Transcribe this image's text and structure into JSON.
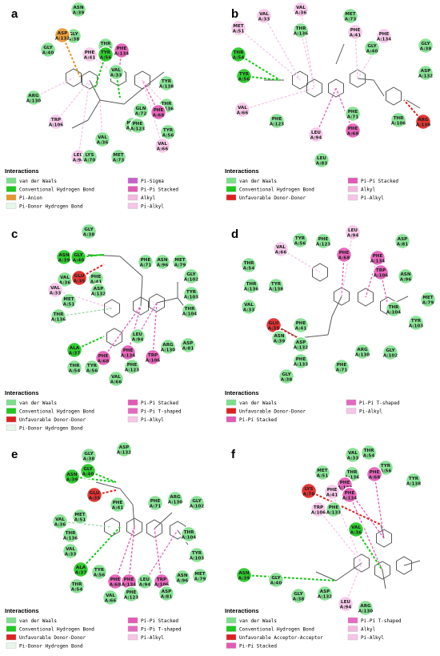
{
  "colors": {
    "vdw": "#7de08c",
    "hbond": "#1ec81e",
    "anion": "#e8962c",
    "donor_hb": "#e6f7ea",
    "unfav": "#e02020",
    "sigma": "#c65fcf",
    "pi_stack": "#e359b5",
    "pi_t": "#e46ac1",
    "alkyl": "#f4b8df",
    "pi_alkyl": "#f6c5e8"
  },
  "panels": [
    {
      "letter": "a",
      "legend_title": "Interactions",
      "legend": [
        {
          "label": "van der Waals",
          "color": "vdw"
        },
        {
          "label": "Conventional Hydrogen Bond",
          "color": "hbond"
        },
        {
          "label": "Pi-Anion",
          "color": "anion"
        },
        {
          "label": "Pi-Donor Hydrogen Bond",
          "color": "donor_hb"
        },
        {
          "label": "Pi-Sigma",
          "color": "sigma"
        },
        {
          "label": "Pi-Pi Stacked",
          "color": "pi_stack"
        },
        {
          "label": "Alkyl",
          "color": "alkyl"
        },
        {
          "label": "Pi-Alkyl",
          "color": "pi_alkyl"
        }
      ],
      "residues": [
        {
          "n": "ASN",
          "i": "A:39",
          "c": "vdw"
        },
        {
          "n": "GLY",
          "i": "A:38",
          "c": "vdw"
        },
        {
          "n": "ASP",
          "i": "A:132",
          "c": "anion"
        },
        {
          "n": "PHE",
          "i": "A:41",
          "c": "pi_alkyl"
        },
        {
          "n": "THR",
          "i": "A:54",
          "c": "vdw"
        },
        {
          "n": "GLY",
          "i": "A:40",
          "c": "vdw"
        },
        {
          "n": "PHE",
          "i": "A:134",
          "c": "pi_stack"
        },
        {
          "n": "TYR",
          "i": "A:56",
          "c": "hbond"
        },
        {
          "n": "VAL",
          "i": "A:33",
          "c": "vdw"
        },
        {
          "n": "ARG",
          "i": "A:130",
          "c": "vdw"
        },
        {
          "n": "TYR",
          "i": "A:138",
          "c": "vdw"
        },
        {
          "n": "THR",
          "i": "A:136",
          "c": "vdw"
        },
        {
          "n": "GLN",
          "i": "A:72",
          "c": "vdw"
        },
        {
          "n": "PHE",
          "i": "A:68",
          "c": "pi_stack"
        },
        {
          "n": "TRP",
          "i": "A:106",
          "c": "pi_alkyl"
        },
        {
          "n": "MET",
          "i": "A:51",
          "c": "vdw"
        },
        {
          "n": "PHE",
          "i": "A:123",
          "c": "vdw"
        },
        {
          "n": "TYR",
          "i": "A:56",
          "c": "vdw"
        },
        {
          "n": "VAL",
          "i": "A:36",
          "c": "vdw"
        },
        {
          "n": "VAL",
          "i": "A:66",
          "c": "pi_alkyl"
        },
        {
          "n": "LEU",
          "i": "A:94",
          "c": "pi_alkyl"
        },
        {
          "n": "LYS",
          "i": "A:70",
          "c": "vdw"
        },
        {
          "n": "MET",
          "i": "A:73",
          "c": "vdw"
        }
      ]
    },
    {
      "letter": "b",
      "legend_title": "Interactions",
      "legend": [
        {
          "label": "van der Waals",
          "color": "vdw"
        },
        {
          "label": "Conventional Hydrogen Bond",
          "color": "hbond"
        },
        {
          "label": "Unfavorable Donor-Donor",
          "color": "unfav"
        },
        {
          "label": "Pi-Pi Stacked",
          "color": "pi_stack"
        },
        {
          "label": "Alkyl",
          "color": "alkyl"
        },
        {
          "label": "Pi-Alkyl",
          "color": "pi_alkyl"
        }
      ],
      "residues": [
        {
          "n": "VAL",
          "i": "A:33",
          "c": "pi_alkyl"
        },
        {
          "n": "VAL",
          "i": "A:36",
          "c": "pi_alkyl"
        },
        {
          "n": "MET",
          "i": "A:73",
          "c": "vdw"
        },
        {
          "n": "MET",
          "i": "A:51",
          "c": "pi_alkyl"
        },
        {
          "n": "THR",
          "i": "A:136",
          "c": "vdw"
        },
        {
          "n": "PHE",
          "i": "A:41",
          "c": "pi_alkyl"
        },
        {
          "n": "PHE",
          "i": "A:134",
          "c": "pi_alkyl"
        },
        {
          "n": "THR",
          "i": "A:54",
          "c": "hbond"
        },
        {
          "n": "GLY",
          "i": "A:40",
          "c": "vdw"
        },
        {
          "n": "GLY",
          "i": "A:38",
          "c": "vdw"
        },
        {
          "n": "TYR",
          "i": "A:56",
          "c": "hbond"
        },
        {
          "n": "ASP",
          "i": "A:132",
          "c": "vdw"
        },
        {
          "n": "VAL",
          "i": "A:66",
          "c": "pi_alkyl"
        },
        {
          "n": "PHE",
          "i": "A:123",
          "c": "vdw"
        },
        {
          "n": "PHE",
          "i": "A:71",
          "c": "vdw"
        },
        {
          "n": "THR",
          "i": "A:106",
          "c": "vdw"
        },
        {
          "n": "ARG",
          "i": "A:130",
          "c": "unfav"
        },
        {
          "n": "LEU",
          "i": "A:94",
          "c": "pi_alkyl"
        },
        {
          "n": "PHE",
          "i": "A:68",
          "c": "pi_stack"
        },
        {
          "n": "LEU",
          "i": "A:83",
          "c": "vdw"
        }
      ]
    },
    {
      "letter": "c",
      "legend_title": "Interactions",
      "legend": [
        {
          "label": "van der Waals",
          "color": "vdw"
        },
        {
          "label": "Conventional Hydrogen Bond",
          "color": "hbond"
        },
        {
          "label": "Unfavorable Donor-Donor",
          "color": "unfav"
        },
        {
          "label": "Pi-Donor Hydrogen Bond",
          "color": "donor_hb"
        },
        {
          "label": "Pi-Pi Stacked",
          "color": "pi_stack"
        },
        {
          "label": "Pi-Pi T-shaped",
          "color": "pi_t"
        },
        {
          "label": "Pi-Alkyl",
          "color": "pi_alkyl"
        }
      ],
      "residues": [
        {
          "n": "GLY",
          "i": "A:38",
          "c": "vdw"
        },
        {
          "n": "ASN",
          "i": "A:39",
          "c": "hbond"
        },
        {
          "n": "GLY",
          "i": "A:40",
          "c": "hbond"
        },
        {
          "n": "PHE",
          "i": "A:71",
          "c": "vdw"
        },
        {
          "n": "ASN",
          "i": "A:96",
          "c": "vdw"
        },
        {
          "n": "MET",
          "i": "A:79",
          "c": "vdw"
        },
        {
          "n": "VAL",
          "i": "A:36",
          "c": "vdw"
        },
        {
          "n": "GLU",
          "i": "A:35",
          "c": "unfav"
        },
        {
          "n": "PHE",
          "i": "A:41",
          "c": "vdw"
        },
        {
          "n": "GLY",
          "i": "A:102",
          "c": "vdw"
        },
        {
          "n": "ASP",
          "i": "A:132",
          "c": "vdw"
        },
        {
          "n": "TYR",
          "i": "A:103",
          "c": "vdw"
        },
        {
          "n": "VAL",
          "i": "A:33",
          "c": "pi_alkyl"
        },
        {
          "n": "MET",
          "i": "A:51",
          "c": "vdw"
        },
        {
          "n": "THR",
          "i": "A:104",
          "c": "vdw"
        },
        {
          "n": "THR",
          "i": "A:136",
          "c": "vdw"
        },
        {
          "n": "LEU",
          "i": "A:94",
          "c": "vdw"
        },
        {
          "n": "ARG",
          "i": "A:130",
          "c": "vdw"
        },
        {
          "n": "ASP",
          "i": "A:81",
          "c": "vdw"
        },
        {
          "n": "ALA",
          "i": "A:37",
          "c": "hbond"
        },
        {
          "n": "PHE",
          "i": "A:68",
          "c": "pi_stack"
        },
        {
          "n": "PHE",
          "i": "A:134",
          "c": "pi_stack"
        },
        {
          "n": "TRP",
          "i": "A:106",
          "c": "pi_stack"
        },
        {
          "n": "THR",
          "i": "A:54",
          "c": "vdw"
        },
        {
          "n": "TYR",
          "i": "A:56",
          "c": "vdw"
        },
        {
          "n": "PHE",
          "i": "A:123",
          "c": "vdw"
        },
        {
          "n": "VAL",
          "i": "A:66",
          "c": "vdw"
        }
      ]
    },
    {
      "letter": "d",
      "legend_title": "Interactions",
      "legend": [
        {
          "label": "van der Waals",
          "color": "vdw"
        },
        {
          "label": "Unfavorable Donor-Donor",
          "color": "unfav"
        },
        {
          "label": "Pi-Pi Stacked",
          "color": "pi_stack"
        },
        {
          "label": "Pi-Pi T-shaped",
          "color": "pi_t"
        },
        {
          "label": "Pi-Alkyl",
          "color": "pi_alkyl"
        }
      ],
      "residues": [
        {
          "n": "LEU",
          "i": "A:94",
          "c": "pi_alkyl"
        },
        {
          "n": "VAL",
          "i": "A:66",
          "c": "pi_alkyl"
        },
        {
          "n": "TYR",
          "i": "A:56",
          "c": "vdw"
        },
        {
          "n": "PHE",
          "i": "A:123",
          "c": "vdw"
        },
        {
          "n": "ASP",
          "i": "A:81",
          "c": "vdw"
        },
        {
          "n": "PHE",
          "i": "A:68",
          "c": "pi_stack"
        },
        {
          "n": "PHE",
          "i": "A:134",
          "c": "pi_stack"
        },
        {
          "n": "THR",
          "i": "A:54",
          "c": "vdw"
        },
        {
          "n": "ASN",
          "i": "A:96",
          "c": "vdw"
        },
        {
          "n": "TRP",
          "i": "A:106",
          "c": "pi_stack"
        },
        {
          "n": "THR",
          "i": "A:136",
          "c": "vdw"
        },
        {
          "n": "TYR",
          "i": "A:138",
          "c": "vdw"
        },
        {
          "n": "MET",
          "i": "A:79",
          "c": "vdw"
        },
        {
          "n": "VAL",
          "i": "A:33",
          "c": "vdw"
        },
        {
          "n": "THR",
          "i": "A:104",
          "c": "vdw"
        },
        {
          "n": "GLU",
          "i": "A:35",
          "c": "unfav"
        },
        {
          "n": "PHE",
          "i": "A:41",
          "c": "vdw"
        },
        {
          "n": "TYR",
          "i": "A:103",
          "c": "vdw"
        },
        {
          "n": "ASN",
          "i": "A:39",
          "c": "vdw"
        },
        {
          "n": "ASP",
          "i": "A:132",
          "c": "vdw"
        },
        {
          "n": "ARG",
          "i": "A:130",
          "c": "vdw"
        },
        {
          "n": "GLY",
          "i": "A:102",
          "c": "vdw"
        },
        {
          "n": "PHE",
          "i": "A:133",
          "c": "vdw"
        },
        {
          "n": "PHE",
          "i": "A:71",
          "c": "vdw"
        },
        {
          "n": "GLY",
          "i": "A:38",
          "c": "vdw"
        }
      ]
    },
    {
      "letter": "e",
      "legend_title": "Interactions",
      "legend": [
        {
          "label": "van der Waals",
          "color": "vdw"
        },
        {
          "label": "Conventional Hydrogen Bond",
          "color": "hbond"
        },
        {
          "label": "Unfavorable Donor-Donor",
          "color": "unfav"
        },
        {
          "label": "Pi-Donor Hydrogen Bond",
          "color": "donor_hb"
        },
        {
          "label": "Pi-Pi Stacked",
          "color": "pi_stack"
        },
        {
          "label": "Pi-Pi T-shaped",
          "color": "pi_t"
        },
        {
          "label": "Pi-Alkyl",
          "color": "pi_alkyl"
        }
      ],
      "residues": [
        {
          "n": "GLY",
          "i": "A:38",
          "c": "vdw"
        },
        {
          "n": "ASP",
          "i": "A:132",
          "c": "vdw"
        },
        {
          "n": "GLY",
          "i": "A:40",
          "c": "hbond"
        },
        {
          "n": "ASN",
          "i": "A:39",
          "c": "hbond"
        },
        {
          "n": "PHE",
          "i": "A:71",
          "c": "vdw"
        },
        {
          "n": "ARG",
          "i": "A:130",
          "c": "vdw"
        },
        {
          "n": "GLU",
          "i": "A:35",
          "c": "unfav"
        },
        {
          "n": "PHE",
          "i": "A:41",
          "c": "vdw"
        },
        {
          "n": "GLY",
          "i": "A:102",
          "c": "vdw"
        },
        {
          "n": "VAL",
          "i": "A:36",
          "c": "vdw"
        },
        {
          "n": "MET",
          "i": "A:51",
          "c": "vdw"
        },
        {
          "n": "THR",
          "i": "A:136",
          "c": "vdw"
        },
        {
          "n": "THR",
          "i": "A:104",
          "c": "vdw"
        },
        {
          "n": "VAL",
          "i": "A:33",
          "c": "vdw"
        },
        {
          "n": "TYR",
          "i": "A:103",
          "c": "vdw"
        },
        {
          "n": "ALA",
          "i": "A:37",
          "c": "hbond"
        },
        {
          "n": "TYR",
          "i": "A:56",
          "c": "vdw"
        },
        {
          "n": "PHE",
          "i": "A:68",
          "c": "pi_stack"
        },
        {
          "n": "PHE",
          "i": "A:134",
          "c": "pi_stack"
        },
        {
          "n": "LEU",
          "i": "A:94",
          "c": "vdw"
        },
        {
          "n": "TRP",
          "i": "A:106",
          "c": "pi_stack"
        },
        {
          "n": "ASN",
          "i": "A:96",
          "c": "vdw"
        },
        {
          "n": "MET",
          "i": "A:79",
          "c": "vdw"
        },
        {
          "n": "THR",
          "i": "A:54",
          "c": "vdw"
        },
        {
          "n": "VAL",
          "i": "A:66",
          "c": "vdw"
        },
        {
          "n": "PHE",
          "i": "A:123",
          "c": "vdw"
        },
        {
          "n": "ASP",
          "i": "A:81",
          "c": "vdw"
        }
      ]
    },
    {
      "letter": "f",
      "legend_title": "Interactions",
      "legend": [
        {
          "label": "van der Waals",
          "color": "vdw"
        },
        {
          "label": "Conventional Hydrogen Bond",
          "color": "hbond"
        },
        {
          "label": "Unfavorable Acceptor-Acceptor",
          "color": "unfav"
        },
        {
          "label": "Pi-Pi Stacked",
          "color": "pi_stack"
        },
        {
          "label": "Pi-Pi T-shaped",
          "color": "pi_t"
        },
        {
          "label": "Alkyl",
          "color": "alkyl"
        },
        {
          "label": "Pi-Alkyl",
          "color": "pi_alkyl"
        }
      ],
      "residues": [
        {
          "n": "THR",
          "i": "A:54",
          "c": "vdw"
        },
        {
          "n": "VAL",
          "i": "A:33",
          "c": "vdw"
        },
        {
          "n": "THR",
          "i": "A:136",
          "c": "vdw"
        },
        {
          "n": "TYR",
          "i": "A:56",
          "c": "vdw"
        },
        {
          "n": "TYR",
          "i": "A:138",
          "c": "vdw"
        },
        {
          "n": "MET",
          "i": "A:51",
          "c": "vdw"
        },
        {
          "n": "PHE",
          "i": "A:123",
          "c": "pi_stack"
        },
        {
          "n": "PHE",
          "i": "A:68",
          "c": "pi_stack"
        },
        {
          "n": "LYS",
          "i": "A:70",
          "c": "unfav"
        },
        {
          "n": "PHE",
          "i": "A:41",
          "c": "pi_alkyl"
        },
        {
          "n": "PHE",
          "i": "A:134",
          "c": "pi_stack"
        },
        {
          "n": "TRP",
          "i": "A:106",
          "c": "pi_alkyl"
        },
        {
          "n": "PHE",
          "i": "A:133",
          "c": "vdw"
        },
        {
          "n": "VAL",
          "i": "A:36",
          "c": "hbond"
        },
        {
          "n": "ASN",
          "i": "A:39",
          "c": "hbond"
        },
        {
          "n": "GLY",
          "i": "A:40",
          "c": "vdw"
        },
        {
          "n": "GLY",
          "i": "A:38",
          "c": "vdw"
        },
        {
          "n": "ASP",
          "i": "A:132",
          "c": "vdw"
        },
        {
          "n": "LEU",
          "i": "A:94",
          "c": "pi_alkyl"
        },
        {
          "n": "ARG",
          "i": "A:130",
          "c": "vdw"
        }
      ]
    }
  ]
}
